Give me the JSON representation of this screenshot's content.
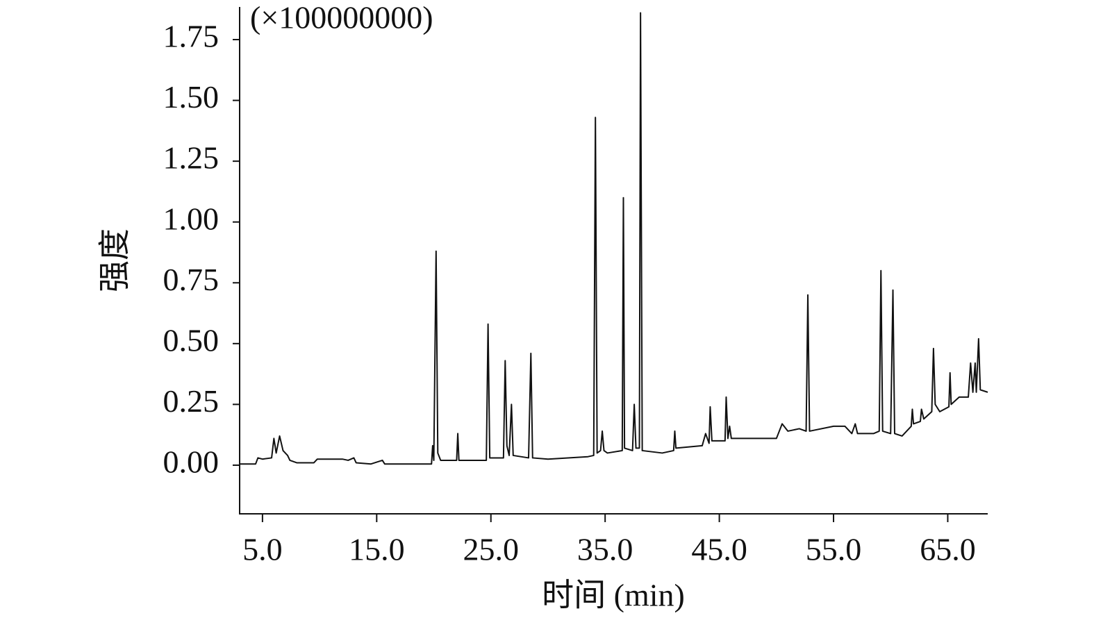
{
  "chart_data": {
    "type": "line",
    "annotation": "(×100000000)",
    "xlabel": "时间 (min)",
    "ylabel": "强度",
    "xlim": [
      3,
      68.5
    ],
    "ylim": [
      -0.2,
      1.87
    ],
    "xticks": [
      {
        "value": 5,
        "label": "5.0"
      },
      {
        "value": 15,
        "label": "15.0"
      },
      {
        "value": 25,
        "label": "25.0"
      },
      {
        "value": 35,
        "label": "35.0"
      },
      {
        "value": 45,
        "label": "45.0"
      },
      {
        "value": 55,
        "label": "55.0"
      },
      {
        "value": 65,
        "label": "65.0"
      }
    ],
    "yticks": [
      {
        "value": 0,
        "label": "0.00"
      },
      {
        "value": 0.25,
        "label": "0.25"
      },
      {
        "value": 0.5,
        "label": "0.50"
      },
      {
        "value": 0.75,
        "label": "0.75"
      },
      {
        "value": 1,
        "label": "1.00"
      },
      {
        "value": 1.25,
        "label": "1.25"
      },
      {
        "value": 1.5,
        "label": "1.50"
      },
      {
        "value": 1.75,
        "label": "1.75"
      }
    ],
    "series": [
      {
        "color": "#111111",
        "x": [
          3.0,
          4.4,
          4.6,
          5.0,
          5.8,
          6.0,
          6.2,
          6.5,
          6.8,
          7.2,
          7.4,
          8.0,
          9.5,
          9.8,
          12.0,
          12.5,
          13.0,
          13.2,
          14.5,
          15.5,
          15.7,
          19.8,
          19.9,
          20.0,
          20.2,
          20.35,
          20.6,
          22.0,
          22.1,
          22.2,
          24.6,
          24.75,
          24.9,
          26.1,
          26.25,
          26.4,
          26.6,
          26.8,
          26.95,
          28.3,
          28.5,
          28.65,
          30.0,
          33.5,
          34.0,
          34.15,
          34.3,
          34.6,
          34.75,
          34.9,
          35.2,
          36.5,
          36.6,
          36.7,
          37.4,
          37.55,
          37.7,
          38.0,
          38.1,
          38.25,
          40.0,
          41.0,
          41.1,
          41.2,
          43.5,
          43.8,
          44.1,
          44.2,
          44.35,
          45.5,
          45.6,
          45.75,
          45.9,
          46.05,
          48.0,
          50.0,
          50.5,
          51.0,
          52.0,
          52.6,
          52.75,
          52.9,
          55.0,
          56.0,
          56.6,
          56.9,
          57.1,
          58.5,
          59.0,
          59.15,
          59.3,
          60.0,
          60.2,
          60.35,
          61.0,
          61.8,
          61.9,
          62.0,
          62.6,
          62.7,
          62.9,
          63.6,
          63.75,
          63.9,
          64.3,
          65.1,
          65.2,
          65.3,
          66.0,
          66.8,
          67.0,
          67.2,
          67.4,
          67.5,
          67.7,
          67.85,
          68.5
        ],
        "values": [
          0.005,
          0.005,
          0.03,
          0.025,
          0.03,
          0.11,
          0.05,
          0.12,
          0.06,
          0.04,
          0.02,
          0.01,
          0.01,
          0.025,
          0.025,
          0.02,
          0.03,
          0.01,
          0.005,
          0.02,
          0.005,
          0.005,
          0.08,
          0.02,
          0.88,
          0.05,
          0.02,
          0.02,
          0.13,
          0.02,
          0.02,
          0.58,
          0.03,
          0.03,
          0.43,
          0.08,
          0.04,
          0.25,
          0.04,
          0.03,
          0.46,
          0.03,
          0.025,
          0.035,
          0.04,
          1.43,
          0.05,
          0.06,
          0.14,
          0.06,
          0.05,
          0.06,
          1.1,
          0.07,
          0.06,
          0.25,
          0.07,
          0.07,
          1.86,
          0.06,
          0.05,
          0.06,
          0.14,
          0.07,
          0.08,
          0.13,
          0.09,
          0.24,
          0.1,
          0.1,
          0.28,
          0.11,
          0.16,
          0.11,
          0.11,
          0.11,
          0.17,
          0.14,
          0.15,
          0.14,
          0.7,
          0.14,
          0.16,
          0.16,
          0.13,
          0.17,
          0.13,
          0.13,
          0.14,
          0.8,
          0.14,
          0.13,
          0.72,
          0.13,
          0.12,
          0.16,
          0.23,
          0.17,
          0.18,
          0.23,
          0.19,
          0.22,
          0.48,
          0.25,
          0.22,
          0.24,
          0.38,
          0.25,
          0.28,
          0.28,
          0.42,
          0.3,
          0.42,
          0.3,
          0.52,
          0.31,
          0.3
        ]
      }
    ]
  }
}
